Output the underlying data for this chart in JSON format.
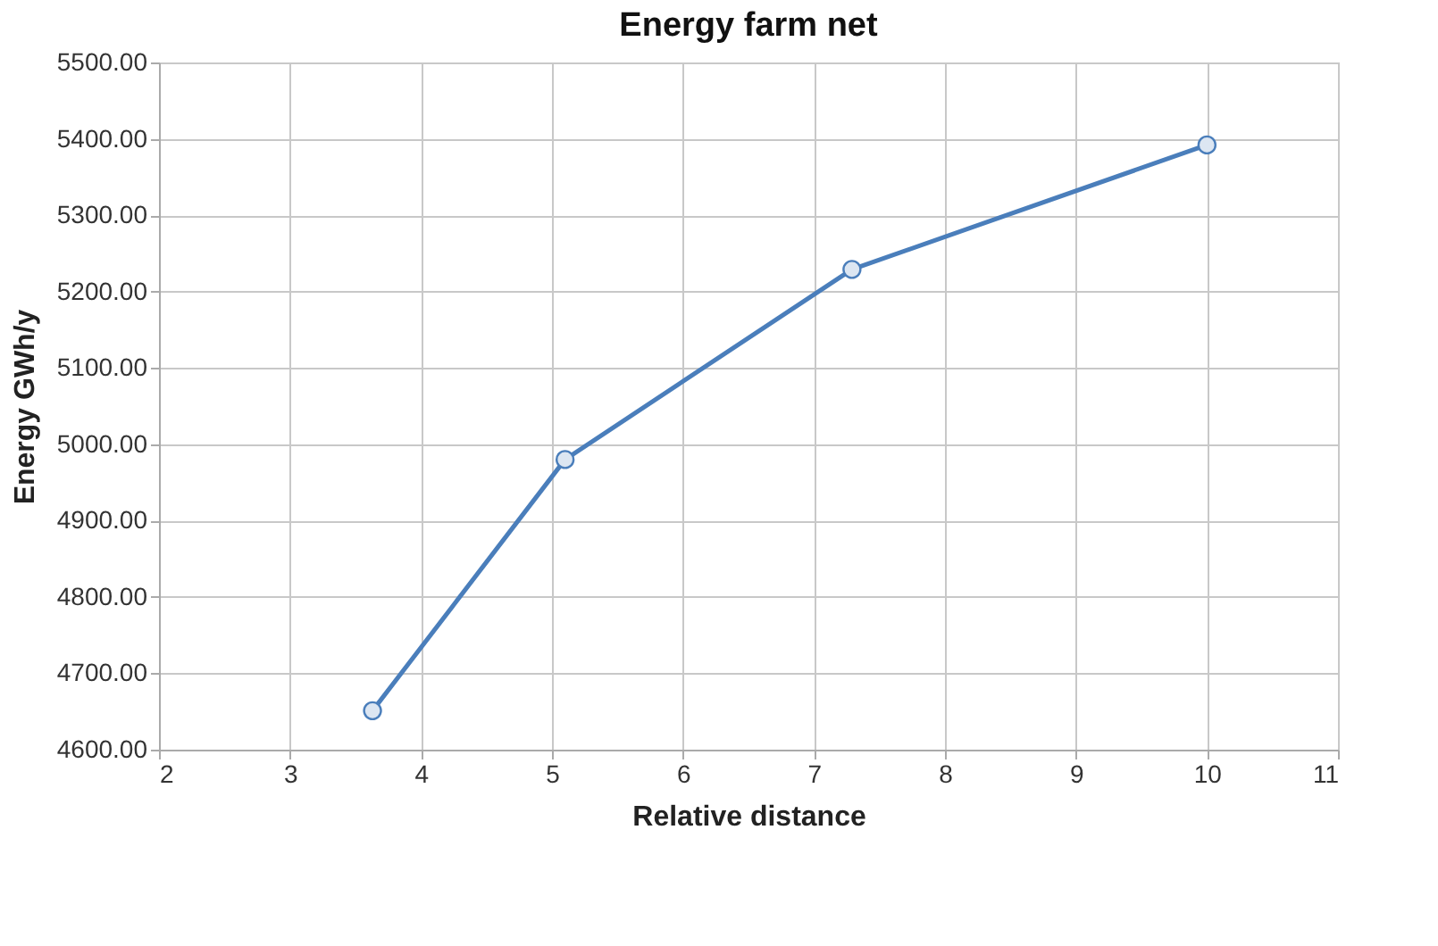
{
  "chart_data": {
    "type": "line",
    "title": "Energy farm net",
    "xlabel": "Relative distance",
    "ylabel": "Energy GWh/y",
    "x": [
      3.63,
      5.1,
      7.29,
      10
    ],
    "series": [
      {
        "color": "#4a7ebb",
        "values": [
          4651,
          4980,
          5229,
          5392
        ]
      }
    ],
    "xlim": [
      2,
      11
    ],
    "xticks": [
      2,
      3,
      4,
      5,
      6,
      7,
      8,
      9,
      10,
      11
    ],
    "ylim": [
      4600,
      5500
    ],
    "yticks": [
      {
        "value": 4600,
        "label": "4600.00"
      },
      {
        "value": 4700,
        "label": "4700.00"
      },
      {
        "value": 4800,
        "label": "4800.00"
      },
      {
        "value": 4900,
        "label": "4900.00"
      },
      {
        "value": 5000,
        "label": "5000.00"
      },
      {
        "value": 5100,
        "label": "5100.00"
      },
      {
        "value": 5200,
        "label": "5200.00"
      },
      {
        "value": 5300,
        "label": "5300.00"
      },
      {
        "value": 5400,
        "label": "5400.00"
      },
      {
        "value": 5500,
        "label": "5500.00"
      }
    ],
    "grid": true,
    "marker": "circle",
    "line_style": "solid"
  }
}
